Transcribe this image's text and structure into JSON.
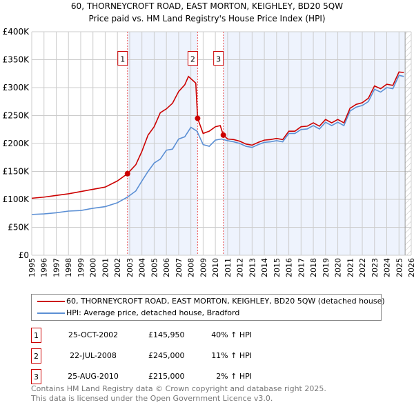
{
  "title": "60, THORNEYCROFT ROAD, EAST MORTON, KEIGHLEY, BD20 5QW",
  "subtitle": "Price paid vs. HM Land Registry's House Price Index (HPI)",
  "colors": {
    "property": "#cc0000",
    "hpi": "#5b8fd4",
    "shade": "#eef3fd"
  },
  "legend": [
    "60, THORNEYCROFT ROAD, EAST MORTON, KEIGHLEY, BD20 5QW (detached house)",
    "HPI: Average price, detached house, Bradford"
  ],
  "transactions": [
    {
      "n": "1",
      "date": "25-OCT-2002",
      "price": "£145,950",
      "hpi": "40% ↑ HPI"
    },
    {
      "n": "2",
      "date": "22-JUL-2008",
      "price": "£245,000",
      "hpi": "11% ↑ HPI"
    },
    {
      "n": "3",
      "date": "25-AUG-2010",
      "price": "£215,000",
      "hpi": "2% ↑ HPI"
    }
  ],
  "footer": [
    "Contains HM Land Registry data © Crown copyright and database right 2025.",
    "This data is licensed under the Open Government Licence v3.0."
  ],
  "chart_data": {
    "type": "line",
    "title": "60, THORNEYCROFT ROAD, EAST MORTON, KEIGHLEY, BD20 5QW",
    "xlim": [
      1995,
      2026
    ],
    "ylim": [
      0,
      400000
    ],
    "yticks": [
      0,
      50000,
      100000,
      150000,
      200000,
      250000,
      300000,
      350000,
      400000
    ],
    "ytick_labels": [
      "£0",
      "£50K",
      "£100K",
      "£150K",
      "£200K",
      "£250K",
      "£300K",
      "£350K",
      "£400K"
    ],
    "xticks": [
      1995,
      1996,
      1997,
      1998,
      1999,
      2000,
      2001,
      2002,
      2003,
      2004,
      2005,
      2006,
      2007,
      2008,
      2009,
      2010,
      2011,
      2012,
      2013,
      2014,
      2015,
      2016,
      2017,
      2018,
      2019,
      2020,
      2021,
      2022,
      2023,
      2024,
      2025,
      2026
    ],
    "sales": [
      {
        "x": 2002.82,
        "y": 145950,
        "label": "1"
      },
      {
        "x": 2008.55,
        "y": 245000,
        "label": "2"
      },
      {
        "x": 2010.65,
        "y": 215000,
        "label": "3"
      }
    ],
    "shaded": [
      [
        2002.82,
        2008.55
      ],
      [
        2010.65,
        2025.5
      ]
    ],
    "hatched_from": 2025.5,
    "series": [
      {
        "name": "property",
        "x": [
          1995,
          1996,
          1997,
          1998,
          1999,
          2000,
          2001,
          2002,
          2002.82,
          2003.5,
          2004,
          2004.5,
          2005,
          2005.5,
          2006,
          2006.5,
          2007,
          2007.5,
          2007.8,
          2008.3,
          2008.4,
          2008.55,
          2009,
          2009.5,
          2010,
          2010.4,
          2010.65,
          2011,
          2011.5,
          2012,
          2012.5,
          2013,
          2013.5,
          2014,
          2014.5,
          2015,
          2015.5,
          2016,
          2016.5,
          2017,
          2017.5,
          2018,
          2018.5,
          2019,
          2019.5,
          2020,
          2020.5,
          2021,
          2021.5,
          2022,
          2022.5,
          2023,
          2023.5,
          2024,
          2024.5,
          2025,
          2025.4
        ],
        "values": [
          102000,
          104000,
          107000,
          110000,
          114000,
          118000,
          122000,
          133000,
          145950,
          162000,
          186000,
          215000,
          230000,
          255000,
          262000,
          272000,
          293000,
          305000,
          320000,
          310000,
          308000,
          245000,
          218000,
          222000,
          230000,
          232000,
          215000,
          208000,
          207000,
          204000,
          199000,
          197000,
          202000,
          206000,
          207000,
          209000,
          207000,
          222000,
          222000,
          230000,
          231000,
          237000,
          231000,
          243000,
          237000,
          243000,
          237000,
          263000,
          270000,
          273000,
          281000,
          303000,
          298000,
          306000,
          304000,
          328000,
          327000
        ]
      },
      {
        "name": "hpi",
        "x": [
          1995,
          1996,
          1997,
          1998,
          1999,
          2000,
          2001,
          2002,
          2002.82,
          2003.5,
          2004,
          2004.5,
          2005,
          2005.5,
          2006,
          2006.5,
          2007,
          2007.5,
          2008,
          2008.5,
          2009,
          2009.5,
          2010,
          2010.5,
          2011,
          2011.5,
          2012,
          2012.5,
          2013,
          2013.5,
          2014,
          2014.5,
          2015,
          2015.5,
          2016,
          2016.5,
          2017,
          2017.5,
          2018,
          2018.5,
          2019,
          2019.5,
          2020,
          2020.5,
          2021,
          2021.5,
          2022,
          2022.5,
          2023,
          2023.5,
          2024,
          2024.5,
          2025,
          2025.4
        ],
        "values": [
          73000,
          74000,
          76000,
          79000,
          80000,
          84000,
          87000,
          94000,
          104000,
          115000,
          133000,
          150000,
          165000,
          172000,
          188000,
          190000,
          208000,
          212000,
          229000,
          222000,
          198000,
          195000,
          206000,
          208000,
          205000,
          203000,
          200000,
          195000,
          193000,
          198000,
          202000,
          203000,
          205000,
          203000,
          218000,
          218000,
          225000,
          226000,
          232000,
          226000,
          238000,
          232000,
          238000,
          232000,
          258000,
          265000,
          268000,
          275000,
          297000,
          292000,
          300000,
          298000,
          322000,
          320000
        ]
      }
    ]
  }
}
